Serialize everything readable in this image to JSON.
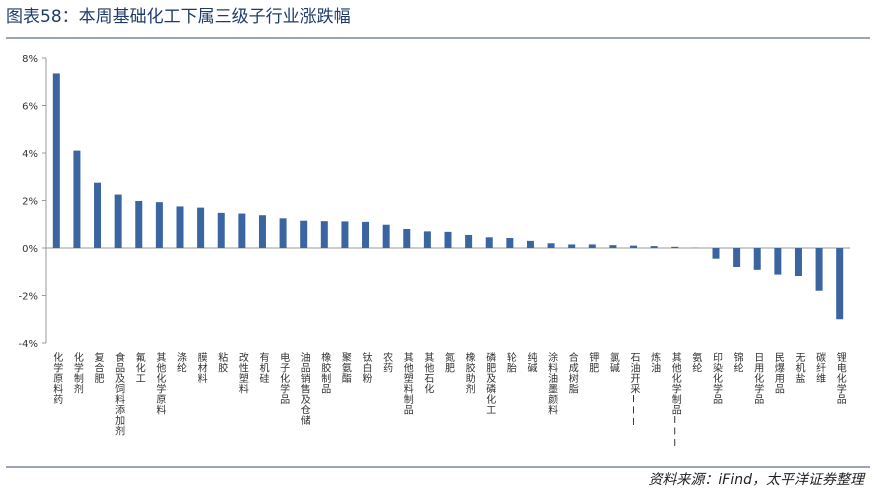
{
  "chart_data": {
    "type": "bar",
    "title": "图表58：本周基础化工下属三级子行业涨跌幅",
    "source": "资料来源：iFind，太平洋证券整理",
    "categories": [
      "化学原料药",
      "化学制剂",
      "复合肥",
      "食品及饲料添加剂",
      "氟化工",
      "其他化学原料",
      "涤纶",
      "膜材料",
      "粘胶",
      "改性塑料",
      "有机硅",
      "电子化学品",
      "油品销售及仓储",
      "橡胶制品",
      "聚氨酯",
      "钛白粉",
      "农药",
      "其他塑料制品",
      "其他石化",
      "氮肥",
      "橡胶助剂",
      "磷肥及磷化工",
      "轮胎",
      "纯碱",
      "涂料油墨颜料",
      "合成树脂",
      "钾肥",
      "氯碱",
      "石油开采III",
      "炼油",
      "其他化学制品III",
      "氨纶",
      "印染化学品",
      "锦纶",
      "日用化学品",
      "民爆用品",
      "无机盐",
      "碳纤维",
      "锂电化学品"
    ],
    "values": [
      7.35,
      4.1,
      2.75,
      2.25,
      1.98,
      1.93,
      1.75,
      1.7,
      1.48,
      1.45,
      1.38,
      1.25,
      1.15,
      1.13,
      1.12,
      1.1,
      0.98,
      0.8,
      0.7,
      0.68,
      0.55,
      0.45,
      0.42,
      0.3,
      0.2,
      0.15,
      0.15,
      0.12,
      0.1,
      0.08,
      0.05,
      0.01,
      -0.45,
      -0.8,
      -0.92,
      -1.12,
      -1.18,
      -1.8,
      -3.0
    ],
    "color": "#3b65a0",
    "ylim": [
      -4,
      8
    ],
    "yticks": [
      {
        "value": -4,
        "label": "-4%"
      },
      {
        "value": -2,
        "label": "-2%"
      },
      {
        "value": 0,
        "label": "0%"
      },
      {
        "value": 2,
        "label": "2%"
      },
      {
        "value": 4,
        "label": "4%"
      },
      {
        "value": 6,
        "label": "6%"
      },
      {
        "value": 8,
        "label": "8%"
      }
    ],
    "grid": false
  }
}
